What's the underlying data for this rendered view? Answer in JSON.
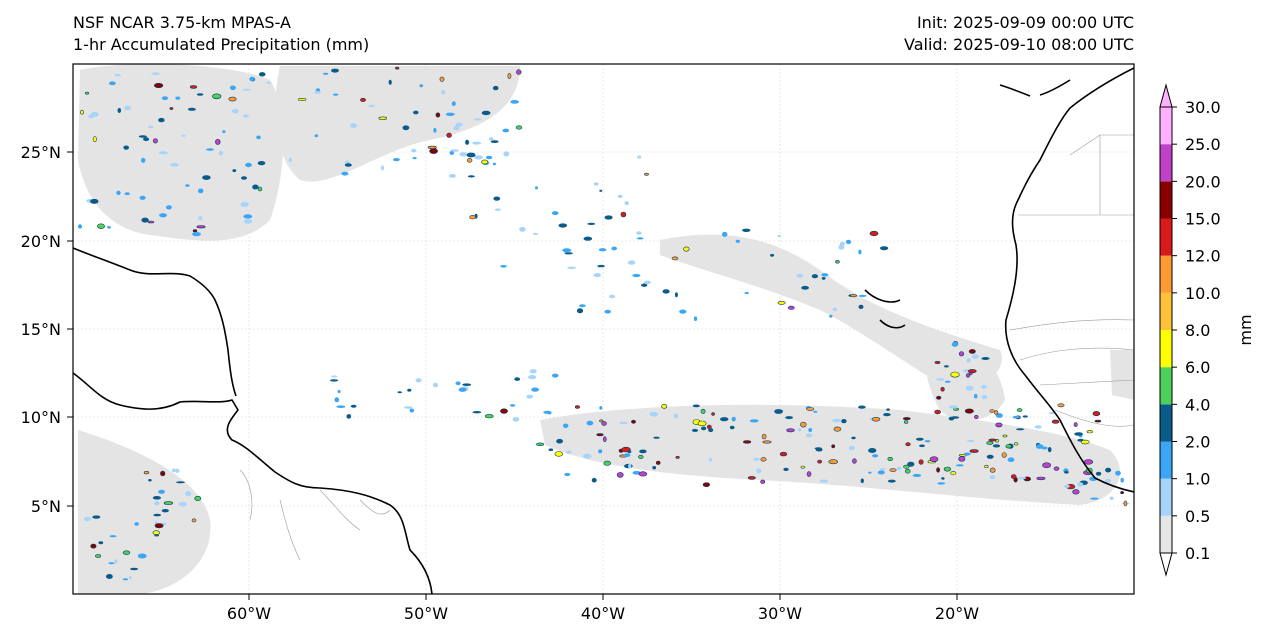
{
  "header": {
    "model": "NSF NCAR 3.75-km MPAS-A",
    "field": "1-hr Accumulated Precipitation (mm)",
    "init": "Init: 2025-09-09 00:00 UTC",
    "valid": "Valid: 2025-09-10 08:00 UTC"
  },
  "map": {
    "lon_range": [
      -70,
      -10
    ],
    "lat_range": [
      0,
      30
    ],
    "lon_ticks": [
      "60°W",
      "50°W",
      "40°W",
      "30°W",
      "20°W"
    ],
    "lat_ticks": [
      "25°N",
      "20°N",
      "15°N",
      "10°N",
      "5°N"
    ],
    "gridlines": true
  },
  "colorbar": {
    "label": "mm",
    "levels": [
      "0.1",
      "0.5",
      "1.0",
      "2.0",
      "4.0",
      "6.0",
      "8.0",
      "10.0",
      "12.0",
      "15.0",
      "20.0",
      "25.0",
      "30.0"
    ],
    "colors": [
      "#e6e6e6",
      "#a6d4fa",
      "#3aa6f5",
      "#0a5a8a",
      "#4cd25a",
      "#ffff00",
      "#ffc03a",
      "#ff9a32",
      "#d81a1a",
      "#8a0000",
      "#c040c8",
      "#ffb0ff"
    ],
    "extend": "both"
  }
}
